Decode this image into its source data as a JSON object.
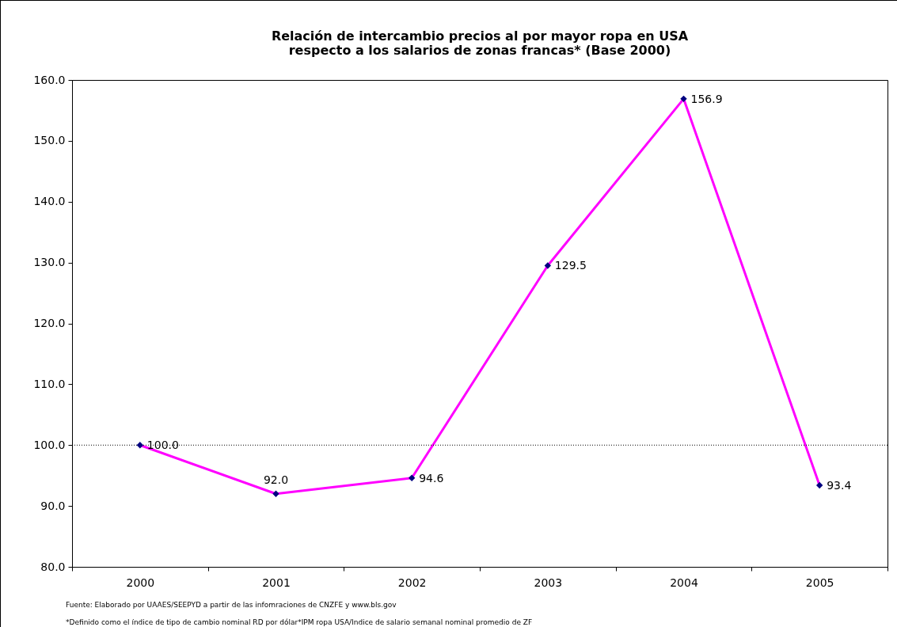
{
  "chart_data": {
    "type": "line",
    "title": [
      "Relación de intercambio precios al por mayor ropa en USA",
      "respecto a los salarios de zonas francas* (Base 2000)"
    ],
    "categories": [
      "2000",
      "2001",
      "2002",
      "2003",
      "2004",
      "2005"
    ],
    "series": [
      {
        "color": "#ff00ff",
        "values": [
          100.0,
          92.0,
          94.6,
          129.5,
          156.9,
          93.4
        ],
        "value_labels": [
          "100.0",
          "92.0",
          "94.6",
          "129.5",
          "156.9",
          "93.4"
        ]
      }
    ],
    "marker": "diamond",
    "grid": false,
    "ylim": [
      80,
      160
    ],
    "yticks": [
      {
        "value": 80,
        "label": "80.0"
      },
      {
        "value": 90,
        "label": "90.0"
      },
      {
        "value": 100,
        "label": "100.0"
      },
      {
        "value": 110,
        "label": "110.0"
      },
      {
        "value": 120,
        "label": "120.0"
      },
      {
        "value": 130,
        "label": "130.0"
      },
      {
        "value": 140,
        "label": "140.0"
      },
      {
        "value": 150,
        "label": "150.0"
      },
      {
        "value": 160,
        "label": "160.0"
      }
    ],
    "ref_lines": [
      {
        "axis": "y",
        "value": 100,
        "color": "#000000",
        "line_style": "dotted"
      }
    ],
    "annotations": [
      "Fuente: Elaborado por UAAES/SEEPYD  a partir de las infomraciones de CNZFE y www.bls.gov",
      "*Definido como el índice de tipo de cambio nominal RD por dólar*IPM ropa USA/Indice de salario semanal nominal promedio de ZF"
    ]
  }
}
